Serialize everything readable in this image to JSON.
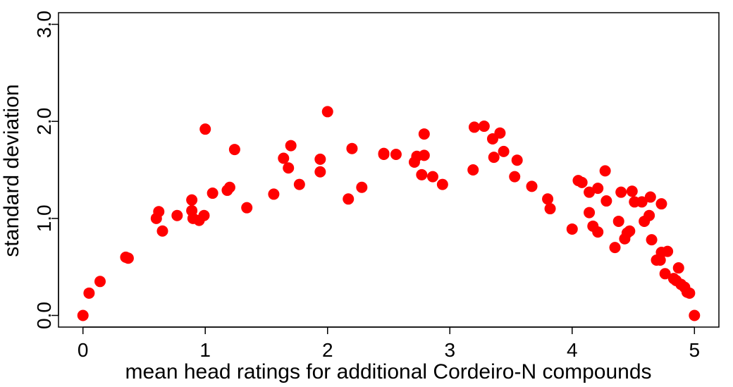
{
  "chart_data": {
    "type": "scatter",
    "title": "",
    "xlabel": "mean head ratings for additional Cordeiro-N compounds",
    "ylabel": "standard deviation",
    "xlim": [
      -0.2,
      5.2
    ],
    "ylim": [
      -0.12,
      3.12
    ],
    "xticks": [
      0,
      1,
      2,
      3,
      4,
      5
    ],
    "xtick_labels": [
      "0",
      "1",
      "2",
      "3",
      "4",
      "5"
    ],
    "yticks": [
      0,
      1,
      2,
      3
    ],
    "ytick_labels": [
      "0.0",
      "1.0",
      "2.0",
      "3.0"
    ],
    "grid": false,
    "point_color": "#ff0000",
    "series": [
      {
        "points": [
          [
            0.0,
            0.0
          ],
          [
            0.05,
            0.23
          ],
          [
            0.14,
            0.35
          ],
          [
            0.35,
            0.6
          ],
          [
            0.37,
            0.59
          ],
          [
            0.6,
            1.0
          ],
          [
            0.62,
            1.07
          ],
          [
            0.65,
            0.87
          ],
          [
            0.77,
            1.03
          ],
          [
            0.89,
            1.19
          ],
          [
            0.89,
            1.08
          ],
          [
            0.9,
            1.0
          ],
          [
            0.95,
            0.98
          ],
          [
            0.99,
            1.03
          ],
          [
            1.0,
            1.92
          ],
          [
            1.06,
            1.26
          ],
          [
            1.18,
            1.29
          ],
          [
            1.2,
            1.32
          ],
          [
            1.24,
            1.71
          ],
          [
            1.34,
            1.11
          ],
          [
            1.56,
            1.25
          ],
          [
            1.64,
            1.62
          ],
          [
            1.68,
            1.52
          ],
          [
            1.7,
            1.75
          ],
          [
            1.77,
            1.35
          ],
          [
            1.94,
            1.61
          ],
          [
            1.94,
            1.48
          ],
          [
            2.0,
            2.1
          ],
          [
            2.17,
            1.2
          ],
          [
            2.2,
            1.72
          ],
          [
            2.28,
            1.32
          ],
          [
            2.46,
            1.66
          ],
          [
            2.46,
            1.67
          ],
          [
            2.56,
            1.66
          ],
          [
            2.71,
            1.58
          ],
          [
            2.73,
            1.64
          ],
          [
            2.77,
            1.45
          ],
          [
            2.79,
            1.65
          ],
          [
            2.79,
            1.87
          ],
          [
            2.86,
            1.43
          ],
          [
            2.94,
            1.35
          ],
          [
            3.19,
            1.5
          ],
          [
            3.2,
            1.94
          ],
          [
            3.28,
            1.95
          ],
          [
            3.35,
            1.82
          ],
          [
            3.36,
            1.63
          ],
          [
            3.41,
            1.88
          ],
          [
            3.44,
            1.69
          ],
          [
            3.53,
            1.43
          ],
          [
            3.55,
            1.6
          ],
          [
            3.67,
            1.33
          ],
          [
            3.8,
            1.2
          ],
          [
            3.82,
            1.1
          ],
          [
            4.0,
            0.89
          ],
          [
            4.05,
            1.39
          ],
          [
            4.08,
            1.37
          ],
          [
            4.14,
            1.27
          ],
          [
            4.14,
            1.06
          ],
          [
            4.17,
            0.92
          ],
          [
            4.21,
            1.31
          ],
          [
            4.21,
            0.86
          ],
          [
            4.27,
            1.49
          ],
          [
            4.28,
            1.18
          ],
          [
            4.35,
            0.7
          ],
          [
            4.38,
            0.97
          ],
          [
            4.4,
            1.27
          ],
          [
            4.43,
            0.79
          ],
          [
            4.45,
            0.85
          ],
          [
            4.47,
            0.87
          ],
          [
            4.49,
            1.28
          ],
          [
            4.51,
            1.17
          ],
          [
            4.57,
            1.17
          ],
          [
            4.59,
            0.97
          ],
          [
            4.63,
            1.03
          ],
          [
            4.64,
            1.22
          ],
          [
            4.65,
            0.78
          ],
          [
            4.69,
            0.57
          ],
          [
            4.72,
            0.57
          ],
          [
            4.73,
            1.15
          ],
          [
            4.73,
            0.65
          ],
          [
            4.76,
            0.43
          ],
          [
            4.78,
            0.66
          ],
          [
            4.83,
            0.38
          ],
          [
            4.85,
            0.36
          ],
          [
            4.87,
            0.49
          ],
          [
            4.89,
            0.32
          ],
          [
            4.92,
            0.29
          ],
          [
            4.94,
            0.24
          ],
          [
            4.96,
            0.23
          ],
          [
            5.0,
            0.0
          ]
        ]
      }
    ]
  }
}
